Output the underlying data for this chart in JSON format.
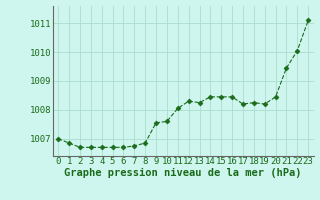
{
  "x": [
    0,
    1,
    2,
    3,
    4,
    5,
    6,
    7,
    8,
    9,
    10,
    11,
    12,
    13,
    14,
    15,
    16,
    17,
    18,
    19,
    20,
    21,
    22,
    23
  ],
  "y": [
    1007.0,
    1006.85,
    1006.7,
    1006.7,
    1006.7,
    1006.7,
    1006.7,
    1006.75,
    1006.85,
    1007.55,
    1007.6,
    1008.05,
    1008.3,
    1008.25,
    1008.45,
    1008.45,
    1008.45,
    1008.2,
    1008.25,
    1008.2,
    1008.45,
    1009.45,
    1010.05,
    1011.1
  ],
  "line_color": "#1a6b1a",
  "marker": "D",
  "marker_size": 2.5,
  "bg_color": "#cef5ee",
  "grid_color": "#aaddcc",
  "xlabel": "Graphe pression niveau de la mer (hPa)",
  "xlabel_color": "#1a6b1a",
  "xlabel_fontsize": 7.5,
  "tick_color": "#1a6b1a",
  "tick_fontsize": 6.5,
  "ylim": [
    1006.4,
    1011.6
  ],
  "yticks": [
    1007,
    1008,
    1009,
    1010,
    1011
  ],
  "xlim": [
    -0.5,
    23.5
  ],
  "xticks": [
    0,
    1,
    2,
    3,
    4,
    5,
    6,
    7,
    8,
    9,
    10,
    11,
    12,
    13,
    14,
    15,
    16,
    17,
    18,
    19,
    20,
    21,
    22,
    23
  ]
}
